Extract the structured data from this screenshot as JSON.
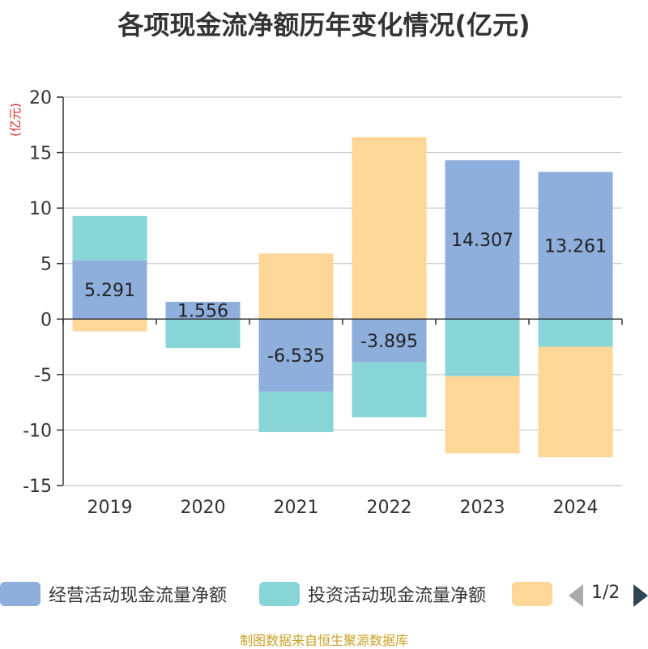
{
  "chart_data": {
    "type": "bar",
    "stacked": true,
    "title": "各项现金流净额历年变化情况(亿元)",
    "unit_label": "(亿元)",
    "categories": [
      "2019",
      "2020",
      "2021",
      "2022",
      "2023",
      "2024"
    ],
    "ylim": [
      -15,
      20
    ],
    "yticks": [
      20,
      15,
      10,
      5,
      0,
      -5,
      -10,
      -15
    ],
    "grid": true,
    "legend_position": "bottom",
    "series": [
      {
        "name": "经营活动现金流量净额",
        "color": "#8eaedc",
        "values": [
          5.291,
          1.556,
          -6.535,
          -3.895,
          14.307,
          13.261
        ],
        "labels": [
          "5.291",
          "1.556",
          "-6.535",
          "-3.895",
          "14.307",
          "13.261"
        ]
      },
      {
        "name": "投资活动现金流量净额",
        "color": "#88d5d8",
        "values": [
          4.0,
          -2.6,
          -3.65,
          -4.95,
          -5.15,
          -2.5
        ]
      },
      {
        "name": "",
        "color": "#fdd797",
        "values": [
          -1.1,
          0,
          5.9,
          16.4,
          -6.95,
          -9.95
        ]
      }
    ]
  },
  "legend": {
    "page_indicator": "1/2"
  },
  "source_note": "制图数据来自恒生聚源数据库"
}
